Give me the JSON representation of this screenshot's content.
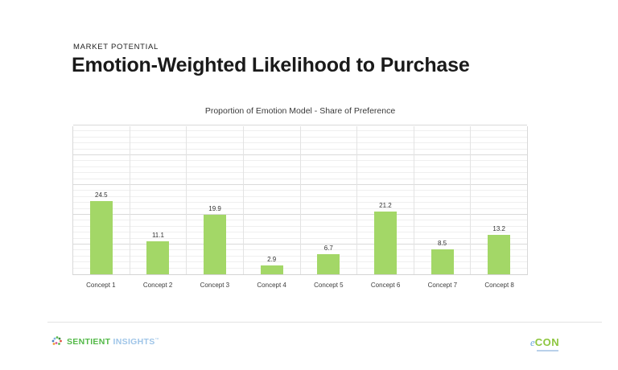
{
  "slide": {
    "kicker": "MARKET POTENTIAL",
    "title": "Emotion-Weighted Likelihood to Purchase"
  },
  "chart_data": {
    "type": "bar",
    "title": "Proportion of Emotion Model - Share of Preference",
    "categories": [
      "Concept 1",
      "Concept 2",
      "Concept 3",
      "Concept 4",
      "Concept 5",
      "Concept 6",
      "Concept 7",
      "Concept 8"
    ],
    "values": [
      24.5,
      11.1,
      19.9,
      2.9,
      6.7,
      21.2,
      8.5,
      13.2
    ],
    "xlabel": "",
    "ylabel": "",
    "ylim": [
      0,
      50
    ],
    "grid": {
      "show": true,
      "minor_step": 2,
      "major_step": 10
    },
    "legend_position": "none",
    "bar_color": "#a3d767",
    "value_label_color": "#333333",
    "value_labels_shown": true,
    "y_axis_labels_shown": false
  },
  "footer": {
    "sentient_logo": {
      "icon": "sentient-burst-icon",
      "word_primary": "SENTIENT",
      "word_secondary": "INSIGHTS",
      "trademark": "™",
      "primary_color": "#53b948",
      "secondary_color": "#9fc5e8",
      "icon_colors": [
        "#4a7ebb",
        "#7fb2e5",
        "#59b94c",
        "#3e8e41",
        "#e04f3f",
        "#f0a030",
        "#d8569b"
      ]
    },
    "econ_logo": {
      "e": "e",
      "con": "CON",
      "e_color": "#6fa8dc",
      "con_color": "#8dc63f"
    }
  }
}
